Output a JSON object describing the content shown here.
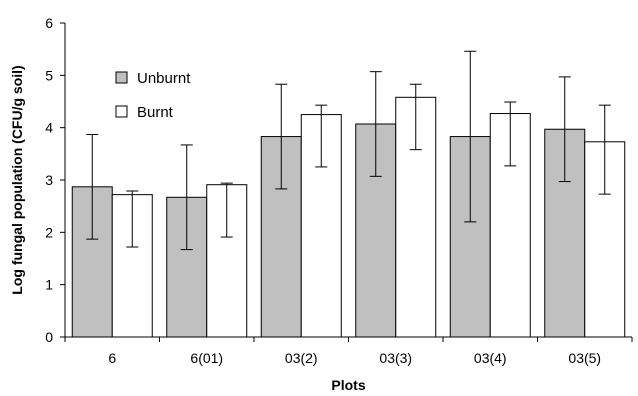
{
  "chart_data": {
    "type": "bar",
    "xlabel": "Plots",
    "ylabel": "Log fungal population (CFU/g soil)",
    "ylim": [
      0,
      6
    ],
    "yticks": [
      "0",
      "1",
      "2",
      "3",
      "4",
      "5",
      "6"
    ],
    "grid": false,
    "legend_position": "top-left",
    "categories": [
      "6",
      "6(01)",
      "03(2)",
      "03(3)",
      "03(4)",
      "03(5)"
    ],
    "series": [
      {
        "name": "Unburnt",
        "color": "#c0c0c0",
        "values": [
          2.87,
          2.67,
          3.83,
          4.07,
          3.83,
          3.97
        ],
        "errors": [
          1.0,
          1.0,
          1.0,
          1.0,
          1.63,
          1.0
        ]
      },
      {
        "name": "Burnt",
        "color": "#ffffff",
        "values": [
          2.72,
          2.91,
          4.25,
          4.58,
          4.27,
          3.73
        ],
        "errors": [
          1.0,
          1.0,
          1.0,
          1.0,
          1.0,
          1.0
        ],
        "errors_upper": [
          0.07,
          0.03,
          0.18,
          0.25,
          0.22,
          0.7
        ]
      }
    ]
  }
}
